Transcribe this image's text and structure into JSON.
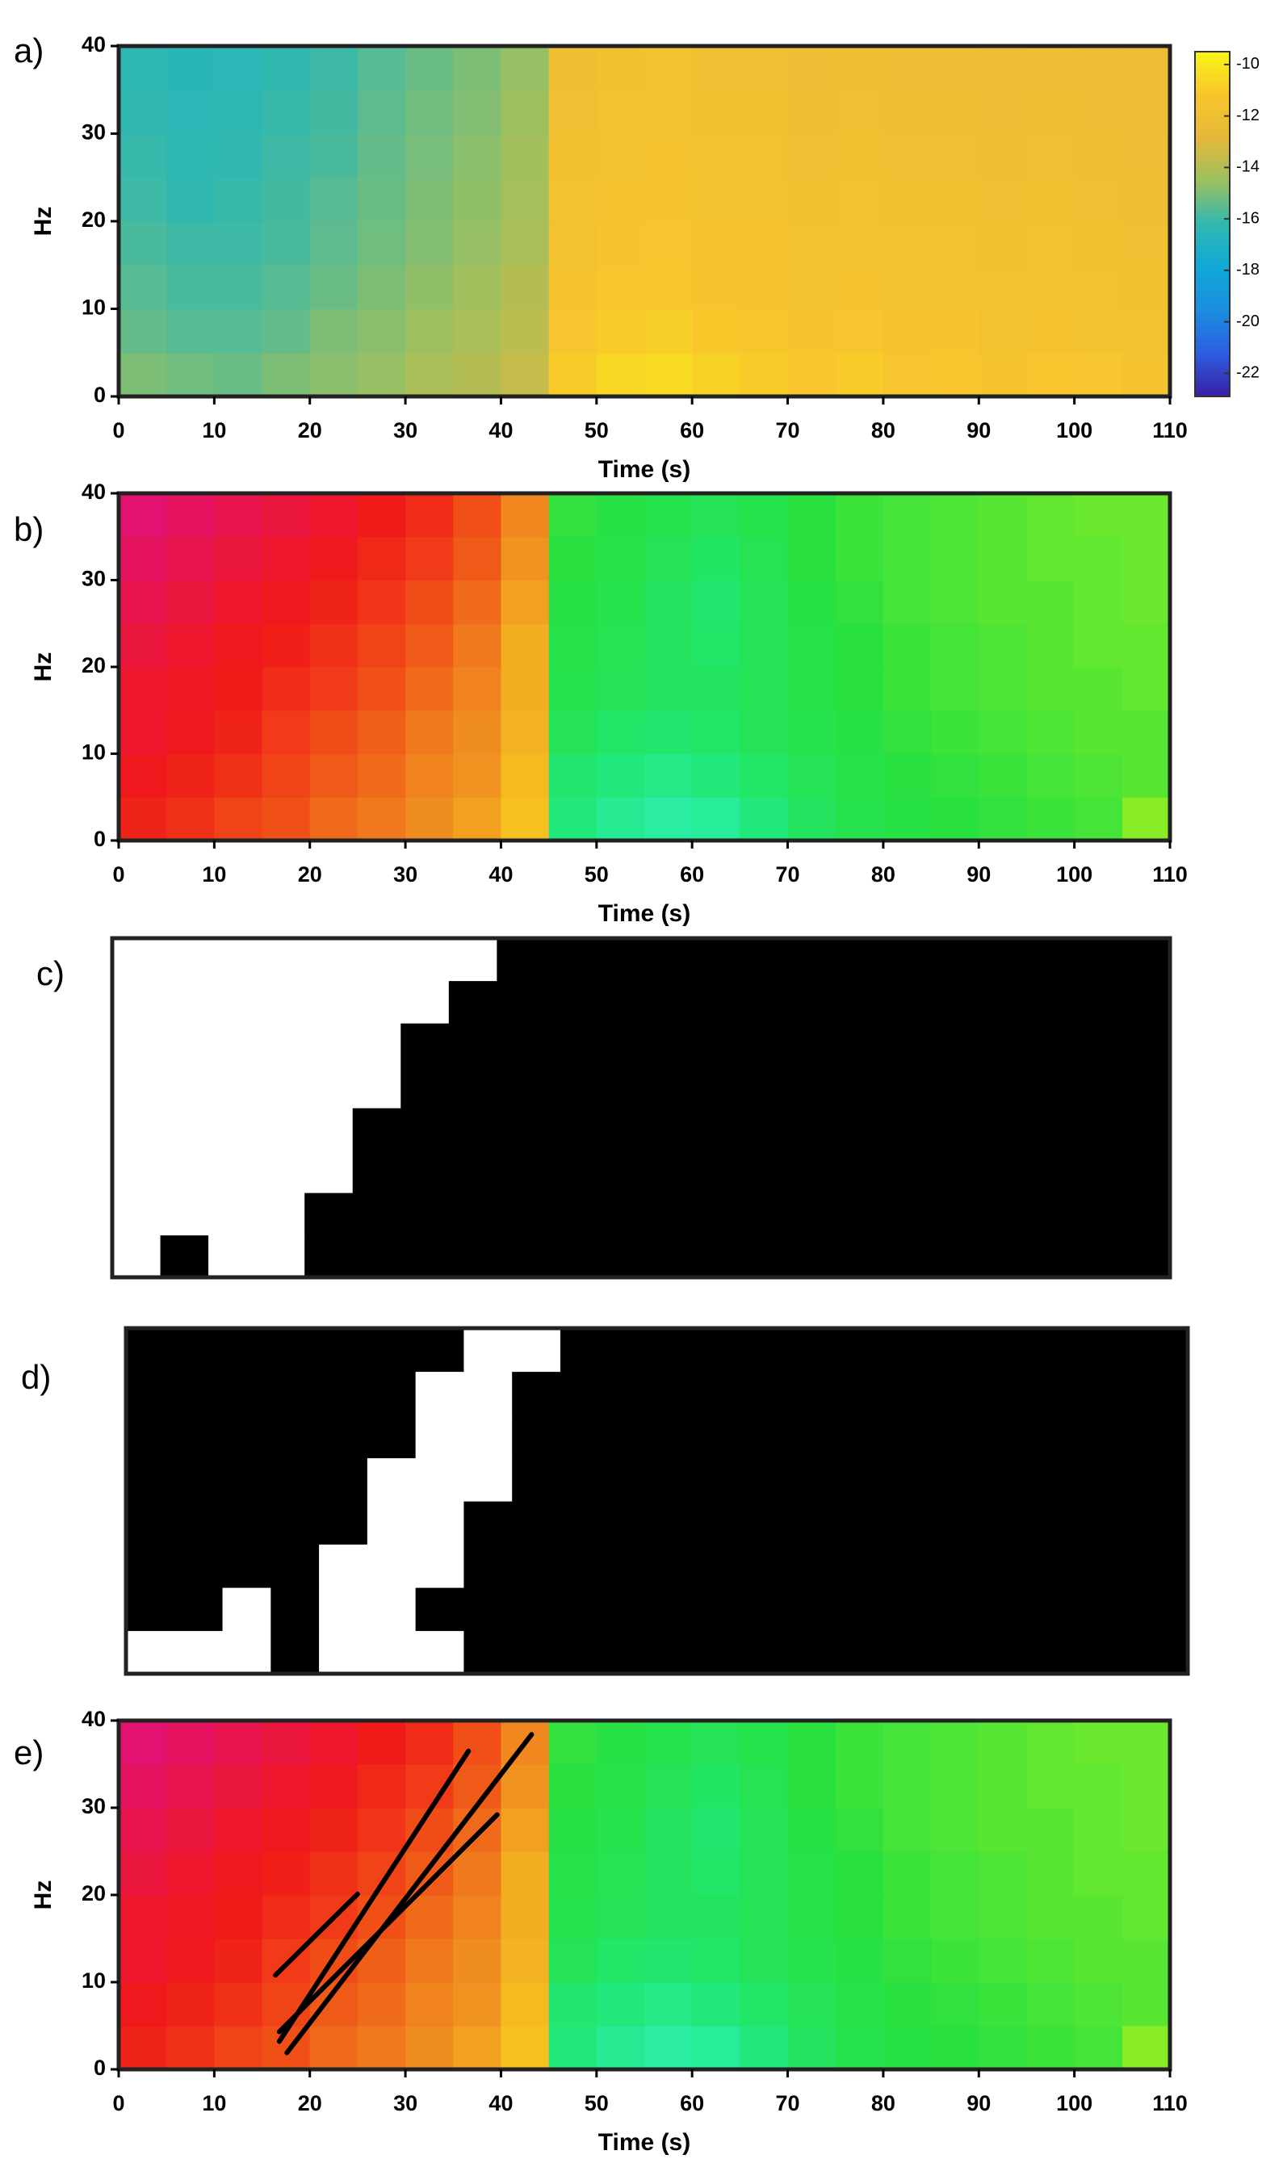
{
  "chart_data": [
    {
      "type": "heatmap",
      "label": "a)",
      "x_label": "Time (s)",
      "y_label": "Hz",
      "xlim": [
        0,
        110
      ],
      "ylim": [
        0,
        40
      ],
      "xticks": [
        0,
        10,
        20,
        30,
        40,
        50,
        60,
        70,
        80,
        90,
        100,
        110
      ],
      "yticks": [
        0,
        10,
        20,
        30,
        40
      ],
      "zlim": [
        -22.9,
        -9.5
      ],
      "colorbar_ticks": [
        -10,
        -12,
        -14,
        -16,
        -18,
        -20,
        -22
      ],
      "colors": [
        "#3a1fa3",
        "#2c5ee0",
        "#1b8ee0",
        "#10a8d8",
        "#30b8b0",
        "#9cc060",
        "#e6b83a",
        "#f8c62c",
        "#f8f516"
      ],
      "values": [
        [
          -15.0,
          -15.2,
          -15.3,
          -15.0,
          -14.8,
          -14.6,
          -14.2,
          -14.0,
          -13.6,
          -11.0,
          -10.6,
          -10.5,
          -10.8,
          -11.0,
          -11.2,
          -11.0,
          -11.3,
          -11.2,
          -11.4,
          -11.2,
          -11.3,
          -11.5
        ],
        [
          -15.4,
          -15.6,
          -15.6,
          -15.4,
          -15.0,
          -14.8,
          -14.5,
          -14.2,
          -13.8,
          -11.3,
          -11.0,
          -10.9,
          -11.1,
          -11.2,
          -11.4,
          -11.3,
          -11.5,
          -11.4,
          -11.6,
          -11.5,
          -11.6,
          -11.7
        ],
        [
          -15.6,
          -15.8,
          -15.8,
          -15.6,
          -15.3,
          -15.0,
          -14.7,
          -14.4,
          -14.0,
          -11.5,
          -11.2,
          -11.2,
          -11.4,
          -11.4,
          -11.6,
          -11.5,
          -11.6,
          -11.6,
          -11.7,
          -11.6,
          -11.7,
          -11.8
        ],
        [
          -15.8,
          -16.0,
          -16.0,
          -15.8,
          -15.5,
          -15.2,
          -14.9,
          -14.6,
          -14.2,
          -11.6,
          -11.4,
          -11.3,
          -11.5,
          -11.5,
          -11.7,
          -11.6,
          -11.7,
          -11.7,
          -11.8,
          -11.7,
          -11.8,
          -11.9
        ],
        [
          -16.0,
          -16.2,
          -16.1,
          -15.9,
          -15.6,
          -15.3,
          -15.0,
          -14.7,
          -14.3,
          -11.7,
          -11.5,
          -11.4,
          -11.6,
          -11.6,
          -11.8,
          -11.7,
          -11.8,
          -11.8,
          -11.9,
          -11.8,
          -11.9,
          -12.0
        ],
        [
          -16.1,
          -16.3,
          -16.2,
          -16.0,
          -15.8,
          -15.4,
          -15.1,
          -14.8,
          -14.4,
          -11.8,
          -11.6,
          -11.5,
          -11.7,
          -11.7,
          -11.9,
          -11.8,
          -11.9,
          -11.9,
          -12.0,
          -11.9,
          -12.0,
          -12.1
        ],
        [
          -16.2,
          -16.4,
          -16.3,
          -16.1,
          -15.9,
          -15.5,
          -15.2,
          -14.9,
          -14.5,
          -11.9,
          -11.7,
          -11.6,
          -11.8,
          -11.8,
          -12.0,
          -11.9,
          -12.0,
          -12.0,
          -12.1,
          -12.0,
          -12.1,
          -12.2
        ],
        [
          -16.3,
          -16.5,
          -16.4,
          -16.2,
          -16.0,
          -15.6,
          -15.3,
          -15.0,
          -14.6,
          -12.0,
          -11.8,
          -11.7,
          -11.9,
          -11.9,
          -12.1,
          -12.0,
          -12.1,
          -12.1,
          -12.2,
          -12.1,
          -12.2,
          -12.3
        ]
      ]
    },
    {
      "type": "heatmap",
      "label": "b)",
      "x_label": "Time (s)",
      "y_label": "Hz",
      "xlim": [
        0,
        110
      ],
      "ylim": [
        0,
        40
      ],
      "xticks": [
        0,
        10,
        20,
        30,
        40,
        50,
        60,
        70,
        80,
        90,
        100,
        110
      ],
      "yticks": [
        0,
        10,
        20,
        30,
        40
      ],
      "zlim": [
        0,
        1
      ],
      "colors": [
        "#e01080",
        "#f01818",
        "#f05018",
        "#f09020",
        "#f8e020",
        "#a0f020",
        "#28e040",
        "#20e878",
        "#30f0c0"
      ],
      "values": [
        [
          0.15,
          0.18,
          0.22,
          0.25,
          0.3,
          0.33,
          0.37,
          0.4,
          0.45,
          0.88,
          0.92,
          0.95,
          0.93,
          0.88,
          0.82,
          0.78,
          0.76,
          0.75,
          0.74,
          0.73,
          0.72,
          0.65
        ],
        [
          0.12,
          0.15,
          0.18,
          0.22,
          0.27,
          0.3,
          0.35,
          0.38,
          0.44,
          0.85,
          0.88,
          0.9,
          0.88,
          0.84,
          0.8,
          0.77,
          0.75,
          0.74,
          0.73,
          0.72,
          0.71,
          0.7
        ],
        [
          0.1,
          0.12,
          0.15,
          0.2,
          0.24,
          0.28,
          0.33,
          0.37,
          0.43,
          0.8,
          0.84,
          0.85,
          0.84,
          0.8,
          0.78,
          0.76,
          0.74,
          0.73,
          0.72,
          0.71,
          0.7,
          0.7
        ],
        [
          0.1,
          0.11,
          0.13,
          0.17,
          0.2,
          0.25,
          0.3,
          0.35,
          0.42,
          0.78,
          0.8,
          0.82,
          0.82,
          0.8,
          0.77,
          0.75,
          0.73,
          0.72,
          0.71,
          0.7,
          0.7,
          0.69
        ],
        [
          0.08,
          0.1,
          0.12,
          0.14,
          0.18,
          0.22,
          0.27,
          0.33,
          0.42,
          0.77,
          0.79,
          0.82,
          0.84,
          0.8,
          0.77,
          0.75,
          0.73,
          0.72,
          0.71,
          0.7,
          0.69,
          0.69
        ],
        [
          0.06,
          0.08,
          0.1,
          0.12,
          0.15,
          0.19,
          0.24,
          0.3,
          0.4,
          0.76,
          0.78,
          0.82,
          0.85,
          0.8,
          0.76,
          0.74,
          0.72,
          0.71,
          0.7,
          0.7,
          0.69,
          0.68
        ],
        [
          0.04,
          0.06,
          0.08,
          0.1,
          0.12,
          0.16,
          0.2,
          0.27,
          0.38,
          0.75,
          0.77,
          0.8,
          0.83,
          0.79,
          0.75,
          0.73,
          0.72,
          0.71,
          0.7,
          0.69,
          0.69,
          0.68
        ],
        [
          0.02,
          0.04,
          0.06,
          0.08,
          0.1,
          0.13,
          0.17,
          0.25,
          0.36,
          0.74,
          0.76,
          0.78,
          0.8,
          0.78,
          0.75,
          0.73,
          0.72,
          0.71,
          0.7,
          0.69,
          0.68,
          0.68
        ]
      ]
    },
    {
      "type": "heatmap",
      "label": "c)",
      "xlim": [
        0,
        110
      ],
      "ylim": [
        0,
        40
      ],
      "zlim": [
        0,
        1
      ],
      "colors": [
        "#ffffff",
        "#000000"
      ],
      "values": [
        [
          0,
          1,
          0,
          0,
          1,
          1,
          1,
          1,
          1,
          1,
          1,
          1,
          1,
          1,
          1,
          1,
          1,
          1,
          1,
          1,
          1,
          1
        ],
        [
          0,
          0,
          0,
          0,
          1,
          1,
          1,
          1,
          1,
          1,
          1,
          1,
          1,
          1,
          1,
          1,
          1,
          1,
          1,
          1,
          1,
          1
        ],
        [
          0,
          0,
          0,
          0,
          0,
          1,
          1,
          1,
          1,
          1,
          1,
          1,
          1,
          1,
          1,
          1,
          1,
          1,
          1,
          1,
          1,
          1
        ],
        [
          0,
          0,
          0,
          0,
          0,
          1,
          1,
          1,
          1,
          1,
          1,
          1,
          1,
          1,
          1,
          1,
          1,
          1,
          1,
          1,
          1,
          1
        ],
        [
          0,
          0,
          0,
          0,
          0,
          0,
          1,
          1,
          1,
          1,
          1,
          1,
          1,
          1,
          1,
          1,
          1,
          1,
          1,
          1,
          1,
          1
        ],
        [
          0,
          0,
          0,
          0,
          0,
          0,
          1,
          1,
          1,
          1,
          1,
          1,
          1,
          1,
          1,
          1,
          1,
          1,
          1,
          1,
          1,
          1
        ],
        [
          0,
          0,
          0,
          0,
          0,
          0,
          0,
          1,
          1,
          1,
          1,
          1,
          1,
          1,
          1,
          1,
          1,
          1,
          1,
          1,
          1,
          1
        ],
        [
          0,
          0,
          0,
          0,
          0,
          0,
          0,
          0,
          1,
          1,
          1,
          1,
          1,
          1,
          1,
          1,
          1,
          1,
          1,
          1,
          1,
          1
        ]
      ]
    },
    {
      "type": "heatmap",
      "label": "d)",
      "xlim": [
        0,
        110
      ],
      "ylim": [
        0,
        40
      ],
      "zlim": [
        0,
        1
      ],
      "colors": [
        "#000000",
        "#ffffff"
      ],
      "values": [
        [
          1,
          1,
          1,
          0,
          1,
          1,
          1,
          0,
          0,
          0,
          0,
          0,
          0,
          0,
          0,
          0,
          0,
          0,
          0,
          0,
          0,
          0
        ],
        [
          0,
          0,
          1,
          0,
          1,
          1,
          0,
          0,
          0,
          0,
          0,
          0,
          0,
          0,
          0,
          0,
          0,
          0,
          0,
          0,
          0,
          0
        ],
        [
          0,
          0,
          0,
          0,
          1,
          1,
          1,
          0,
          0,
          0,
          0,
          0,
          0,
          0,
          0,
          0,
          0,
          0,
          0,
          0,
          0,
          0
        ],
        [
          0,
          0,
          0,
          0,
          0,
          1,
          1,
          0,
          0,
          0,
          0,
          0,
          0,
          0,
          0,
          0,
          0,
          0,
          0,
          0,
          0,
          0
        ],
        [
          0,
          0,
          0,
          0,
          0,
          1,
          1,
          1,
          0,
          0,
          0,
          0,
          0,
          0,
          0,
          0,
          0,
          0,
          0,
          0,
          0,
          0
        ],
        [
          0,
          0,
          0,
          0,
          0,
          0,
          1,
          1,
          0,
          0,
          0,
          0,
          0,
          0,
          0,
          0,
          0,
          0,
          0,
          0,
          0,
          0
        ],
        [
          0,
          0,
          0,
          0,
          0,
          0,
          1,
          1,
          0,
          0,
          0,
          0,
          0,
          0,
          0,
          0,
          0,
          0,
          0,
          0,
          0,
          0
        ],
        [
          0,
          0,
          0,
          0,
          0,
          0,
          0,
          1,
          1,
          0,
          0,
          0,
          0,
          0,
          0,
          0,
          0,
          0,
          0,
          0,
          0,
          0
        ]
      ]
    },
    {
      "type": "heatmap",
      "label": "e)",
      "x_label": "Time (s)",
      "y_label": "Hz",
      "xlim": [
        0,
        110
      ],
      "ylim": [
        0,
        40
      ],
      "xticks": [
        0,
        10,
        20,
        30,
        40,
        50,
        60,
        70,
        80,
        90,
        100,
        110
      ],
      "yticks": [
        0,
        10,
        20,
        30,
        40
      ],
      "zlim": [
        0,
        1
      ],
      "colors": [
        "#e01080",
        "#f01818",
        "#f05018",
        "#f09020",
        "#f8e020",
        "#a0f020",
        "#28e040",
        "#20e878",
        "#30f0c0"
      ],
      "values": [
        [
          0.15,
          0.18,
          0.22,
          0.25,
          0.3,
          0.33,
          0.37,
          0.4,
          0.45,
          0.88,
          0.92,
          0.95,
          0.93,
          0.88,
          0.82,
          0.78,
          0.76,
          0.75,
          0.74,
          0.73,
          0.72,
          0.65
        ],
        [
          0.12,
          0.15,
          0.18,
          0.22,
          0.27,
          0.3,
          0.35,
          0.38,
          0.44,
          0.85,
          0.88,
          0.9,
          0.88,
          0.84,
          0.8,
          0.77,
          0.75,
          0.74,
          0.73,
          0.72,
          0.71,
          0.7
        ],
        [
          0.1,
          0.12,
          0.15,
          0.2,
          0.24,
          0.28,
          0.33,
          0.37,
          0.43,
          0.8,
          0.84,
          0.85,
          0.84,
          0.8,
          0.78,
          0.76,
          0.74,
          0.73,
          0.72,
          0.71,
          0.7,
          0.7
        ],
        [
          0.1,
          0.11,
          0.13,
          0.17,
          0.2,
          0.25,
          0.3,
          0.35,
          0.42,
          0.78,
          0.8,
          0.82,
          0.82,
          0.8,
          0.77,
          0.75,
          0.73,
          0.72,
          0.71,
          0.7,
          0.7,
          0.69
        ],
        [
          0.08,
          0.1,
          0.12,
          0.14,
          0.18,
          0.22,
          0.27,
          0.33,
          0.42,
          0.77,
          0.79,
          0.82,
          0.84,
          0.8,
          0.77,
          0.75,
          0.73,
          0.72,
          0.71,
          0.7,
          0.69,
          0.69
        ],
        [
          0.06,
          0.08,
          0.1,
          0.12,
          0.15,
          0.19,
          0.24,
          0.3,
          0.4,
          0.76,
          0.78,
          0.82,
          0.85,
          0.8,
          0.76,
          0.74,
          0.72,
          0.71,
          0.7,
          0.7,
          0.69,
          0.68
        ],
        [
          0.04,
          0.06,
          0.08,
          0.1,
          0.12,
          0.16,
          0.2,
          0.27,
          0.38,
          0.75,
          0.77,
          0.8,
          0.83,
          0.79,
          0.75,
          0.73,
          0.72,
          0.71,
          0.7,
          0.69,
          0.69,
          0.68
        ],
        [
          0.02,
          0.04,
          0.06,
          0.08,
          0.1,
          0.13,
          0.17,
          0.25,
          0.36,
          0.74,
          0.76,
          0.78,
          0.8,
          0.78,
          0.75,
          0.73,
          0.72,
          0.71,
          0.7,
          0.69,
          0.68,
          0.68
        ]
      ],
      "line_color": "#000000",
      "lines": [
        {
          "x": [
            16.4,
            25.0
          ],
          "y": [
            10.8,
            20.1
          ]
        },
        {
          "x": [
            16.8,
            36.6
          ],
          "y": [
            3.2,
            36.5
          ]
        },
        {
          "x": [
            17.6,
            43.2
          ],
          "y": [
            1.9,
            38.4
          ]
        },
        {
          "x": [
            16.8,
            39.6
          ],
          "y": [
            4.3,
            29.2
          ]
        }
      ]
    }
  ]
}
